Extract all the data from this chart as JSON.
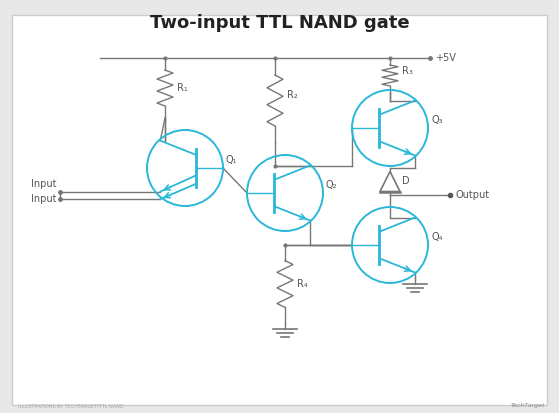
{
  "title": "Two-input TTL NAND gate",
  "title_fontsize": 13,
  "title_fontweight": "bold",
  "title_color": "#222222",
  "background_color": "#e8e8e8",
  "panel_color": "#ffffff",
  "line_color": "#777777",
  "transistor_color": "#29b8d8",
  "label_color": "#555555",
  "vdd_label": "+5V",
  "input_label1": "Input",
  "input_label2": "Input",
  "output_label": "Output",
  "r1_label": "R₁",
  "r2_label": "R₂",
  "r3_label": "R₃",
  "r4_label": "R₄",
  "q1_label": "Q₁",
  "q2_label": "Q₂",
  "q3_label": "Q₃",
  "q4_label": "Q₄",
  "d_label": "D",
  "watermark_left": "ILLUSTRATIONS BY TECHTARGET/TTL NAND",
  "watermark_right": "TechTarget"
}
